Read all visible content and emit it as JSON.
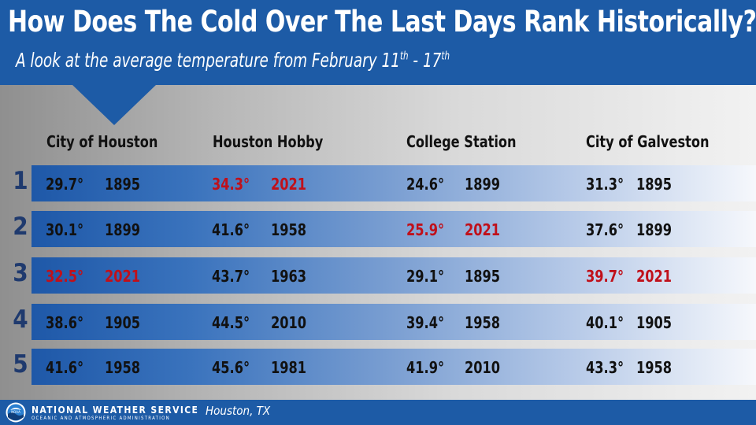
{
  "title": "How Does The Cold Over The Last Days Rank Historically?",
  "subtitle": {
    "text": "A look at the average temperature from February 11",
    "sup1": "th",
    "sep": "  - 17",
    "sup2": "th"
  },
  "columns": [
    "City of Houston",
    "Houston Hobby",
    "College Station",
    "City of Galveston"
  ],
  "ranks": [
    "1",
    "2",
    "3",
    "4",
    "5"
  ],
  "rows": [
    [
      {
        "temp": "29.7°",
        "year": "1895",
        "record": false
      },
      {
        "temp": "34.3°",
        "year": "2021",
        "record": true
      },
      {
        "temp": "24.6°",
        "year": "1899",
        "record": false
      },
      {
        "temp": "31.3°",
        "year": "1895",
        "record": false
      }
    ],
    [
      {
        "temp": "30.1°",
        "year": "1899",
        "record": false
      },
      {
        "temp": "41.6°",
        "year": "1958",
        "record": false
      },
      {
        "temp": "25.9°",
        "year": "2021",
        "record": true
      },
      {
        "temp": "37.6°",
        "year": "1899",
        "record": false
      }
    ],
    [
      {
        "temp": "32.5°",
        "year": "2021",
        "record": true
      },
      {
        "temp": "43.7°",
        "year": "1963",
        "record": false
      },
      {
        "temp": "29.1°",
        "year": "1895",
        "record": false
      },
      {
        "temp": "39.7°",
        "year": "2021",
        "record": true
      }
    ],
    [
      {
        "temp": "38.6°",
        "year": "1905",
        "record": false
      },
      {
        "temp": "44.5°",
        "year": "2010",
        "record": false
      },
      {
        "temp": "39.4°",
        "year": "1958",
        "record": false
      },
      {
        "temp": "40.1°",
        "year": "1905",
        "record": false
      }
    ],
    [
      {
        "temp": "41.6°",
        "year": "1958",
        "record": false
      },
      {
        "temp": "45.6°",
        "year": "1981",
        "record": false
      },
      {
        "temp": "41.9°",
        "year": "2010",
        "record": false
      },
      {
        "temp": "43.3°",
        "year": "1958",
        "record": false
      }
    ]
  ],
  "footer": {
    "agency": "NATIONAL WEATHER SERVICE",
    "agency_sub": "OCEANIC AND ATMOSPHERIC ADMINISTRATION",
    "office": "Houston, TX",
    "logo_icon": "noaa-logo-icon",
    "logo_text": "NOAA"
  },
  "colors": {
    "header_blue": "#1d5ba6",
    "record_red": "#c0101a",
    "rank_navy": "#1f3a6e"
  }
}
